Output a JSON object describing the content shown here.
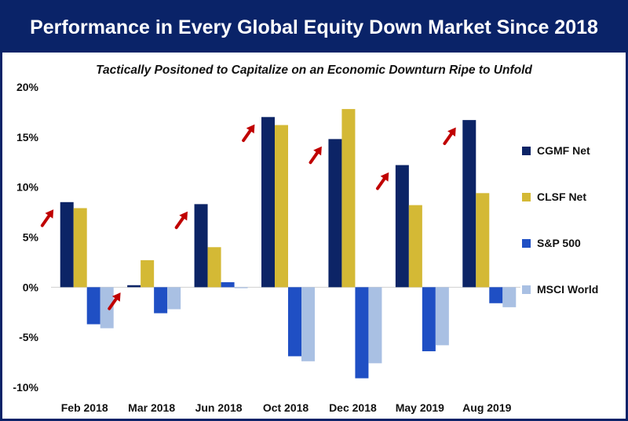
{
  "title": "Performance in Every Global Equity Down Market Since 2018",
  "chart_data": {
    "type": "bar",
    "title": "Performance in Every Global Equity Down Market Since 2018",
    "subtitle": "Tactically Positoned to Capitalize on an Economic Downturn Ripe to Unfold",
    "xlabel": "",
    "ylabel": "",
    "ylim": [
      -10,
      20
    ],
    "yticks": [
      20,
      15,
      10,
      5,
      0,
      -5,
      -10
    ],
    "ytick_labels": [
      "20%",
      "15%",
      "10%",
      "5%",
      "0%",
      "-5%",
      "-10%"
    ],
    "categories": [
      "Feb 2018",
      "Mar 2018",
      "Jun 2018",
      "Oct 2018",
      "Dec 2018",
      "May 2019",
      "Aug 2019"
    ],
    "series": [
      {
        "name": "CGMF Net",
        "color": "#0c2466",
        "values": [
          8.5,
          0.2,
          8.3,
          17.0,
          14.8,
          12.2,
          16.7
        ]
      },
      {
        "name": "CLSF Net",
        "color": "#d4b935",
        "values": [
          7.9,
          2.7,
          4.0,
          16.2,
          17.8,
          8.2,
          9.4
        ]
      },
      {
        "name": "S&P 500",
        "color": "#1f4fc4",
        "values": [
          -3.7,
          -2.6,
          0.5,
          -6.9,
          -9.1,
          -6.4,
          -1.6
        ]
      },
      {
        "name": "MSCI World",
        "color": "#a9c0e3",
        "values": [
          -4.1,
          -2.2,
          -0.1,
          -7.4,
          -7.6,
          -5.8,
          -2.0
        ]
      }
    ],
    "grid": false,
    "legend": "right",
    "annotations": "red up-arrow icon beside each CGMF Net bar"
  }
}
